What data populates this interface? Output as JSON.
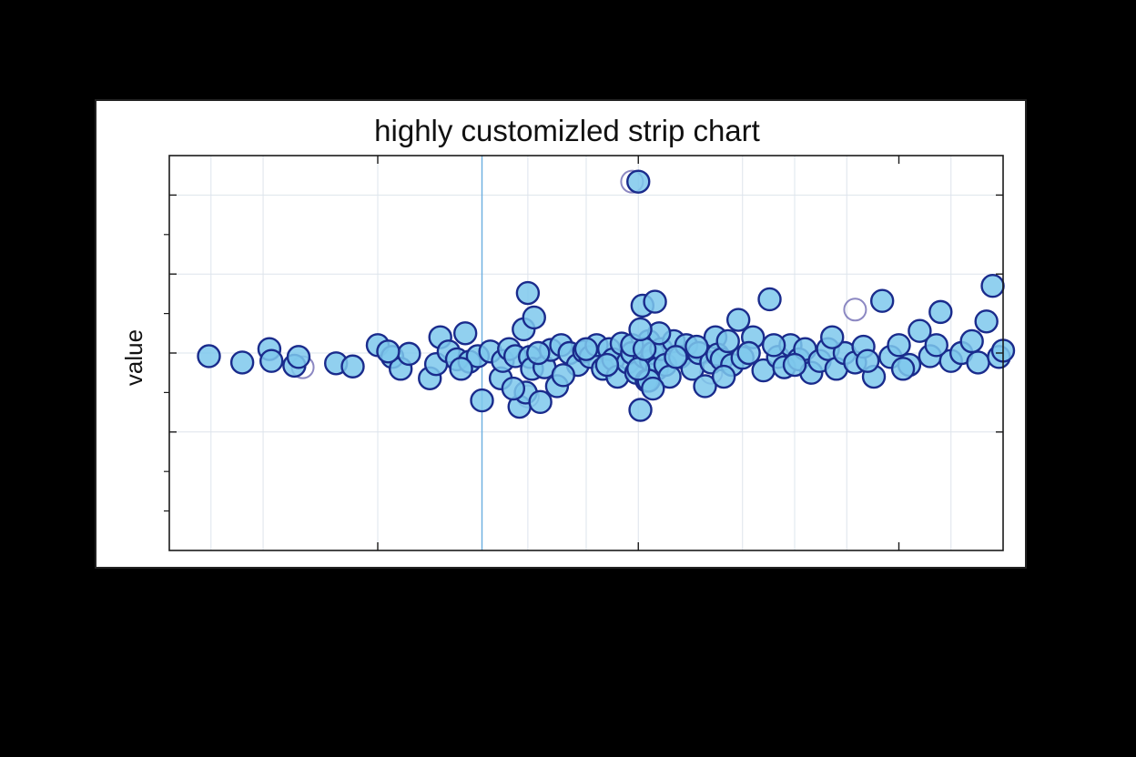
{
  "chart_data": {
    "type": "scatter",
    "title": "highly customizled strip chart",
    "xlabel": "",
    "ylabel": "value",
    "xlim": [
      -1.5,
      2.5
    ],
    "ylim": [
      -2.5,
      2.5
    ],
    "grid": true,
    "tick_labels_shown": false,
    "reference_line_x": 0,
    "colors": {
      "marker_fill": "#7ec8ec",
      "marker_edge": "#1a2b8c",
      "grid": "#dde4ec",
      "reference_line": "#6aaee0"
    },
    "points": [
      {
        "x": -1.31,
        "y": -0.04
      },
      {
        "x": -1.15,
        "y": -0.12
      },
      {
        "x": -1.02,
        "y": 0.05
      },
      {
        "x": -1.01,
        "y": -0.1
      },
      {
        "x": -0.9,
        "y": -0.16
      },
      {
        "x": -0.88,
        "y": -0.05
      },
      {
        "x": -0.7,
        "y": -0.13
      },
      {
        "x": -0.62,
        "y": -0.17
      },
      {
        "x": -0.5,
        "y": 0.1
      },
      {
        "x": -0.43,
        "y": -0.05
      },
      {
        "x": -0.39,
        "y": -0.2
      },
      {
        "x": -0.35,
        "y": -0.01
      },
      {
        "x": -0.25,
        "y": -0.32
      },
      {
        "x": -0.22,
        "y": -0.14
      },
      {
        "x": -0.2,
        "y": 0.2
      },
      {
        "x": -0.16,
        "y": 0.02
      },
      {
        "x": -0.12,
        "y": -0.08
      },
      {
        "x": -0.08,
        "y": 0.25
      },
      {
        "x": -0.06,
        "y": -0.11
      },
      {
        "x": -0.02,
        "y": -0.04
      },
      {
        "x": 0.04,
        "y": 0.02
      },
      {
        "x": 0.09,
        "y": -0.32
      },
      {
        "x": 0.1,
        "y": -0.1
      },
      {
        "x": 0.13,
        "y": 0.05
      },
      {
        "x": 0.16,
        "y": -0.04
      },
      {
        "x": 0.18,
        "y": -0.68
      },
      {
        "x": 0.2,
        "y": 0.3
      },
      {
        "x": 0.21,
        "y": -0.5
      },
      {
        "x": 0.22,
        "y": 0.76
      },
      {
        "x": 0.23,
        "y": -0.05
      },
      {
        "x": 0.24,
        "y": -0.2
      },
      {
        "x": 0.25,
        "y": 0.45
      },
      {
        "x": 0.28,
        "y": -0.62
      },
      {
        "x": 0.3,
        "y": -0.18
      },
      {
        "x": 0.33,
        "y": 0.04
      },
      {
        "x": 0.36,
        "y": -0.42
      },
      {
        "x": 0.38,
        "y": 0.1
      },
      {
        "x": 0.42,
        "y": 0.0
      },
      {
        "x": 0.46,
        "y": -0.15
      },
      {
        "x": 0.49,
        "y": 0.02
      },
      {
        "x": 0.52,
        "y": -0.05
      },
      {
        "x": 0.55,
        "y": 0.1
      },
      {
        "x": 0.58,
        "y": -0.2
      },
      {
        "x": 0.61,
        "y": 0.05
      },
      {
        "x": 0.63,
        "y": -0.08
      },
      {
        "x": 0.65,
        "y": -0.3
      },
      {
        "x": 0.67,
        "y": 0.12
      },
      {
        "x": 0.7,
        "y": -0.12
      },
      {
        "x": 0.72,
        "y": 0.0
      },
      {
        "x": 0.74,
        "y": -0.25
      },
      {
        "x": 0.75,
        "y": 2.17
      },
      {
        "x": 0.76,
        "y": -0.72
      },
      {
        "x": 0.77,
        "y": 0.6
      },
      {
        "x": 0.78,
        "y": -0.05
      },
      {
        "x": 0.79,
        "y": -0.35
      },
      {
        "x": 0.8,
        "y": 0.15
      },
      {
        "x": 0.81,
        "y": -0.1
      },
      {
        "x": 0.82,
        "y": 0.0
      },
      {
        "x": 0.83,
        "y": 0.65
      },
      {
        "x": 0.84,
        "y": -0.2
      },
      {
        "x": 0.86,
        "y": 0.05
      },
      {
        "x": 0.88,
        "y": -0.15
      },
      {
        "x": 0.9,
        "y": -0.3
      },
      {
        "x": 0.92,
        "y": 0.15
      },
      {
        "x": 0.95,
        "y": -0.05
      },
      {
        "x": 0.98,
        "y": 0.1
      },
      {
        "x": 1.01,
        "y": -0.2
      },
      {
        "x": 1.04,
        "y": 0.0
      },
      {
        "x": 1.07,
        "y": -0.42
      },
      {
        "x": 1.1,
        "y": -0.12
      },
      {
        "x": 1.12,
        "y": 0.2
      },
      {
        "x": 1.13,
        "y": -0.02
      },
      {
        "x": 1.15,
        "y": -0.08
      },
      {
        "x": 1.18,
        "y": 0.15
      },
      {
        "x": 1.2,
        "y": -0.15
      },
      {
        "x": 1.23,
        "y": 0.42
      },
      {
        "x": 1.25,
        "y": -0.06
      },
      {
        "x": 1.3,
        "y": 0.2
      },
      {
        "x": 1.35,
        "y": -0.22
      },
      {
        "x": 1.38,
        "y": 0.68
      },
      {
        "x": 1.42,
        "y": -0.05
      },
      {
        "x": 1.45,
        "y": -0.18
      },
      {
        "x": 1.48,
        "y": 0.1
      },
      {
        "x": 1.52,
        "y": -0.08
      },
      {
        "x": 1.55,
        "y": 0.05
      },
      {
        "x": 1.58,
        "y": -0.25
      },
      {
        "x": 1.62,
        "y": -0.1
      },
      {
        "x": 1.66,
        "y": 0.05
      },
      {
        "x": 1.7,
        "y": -0.2
      },
      {
        "x": 1.74,
        "y": 0.0
      },
      {
        "x": 1.79,
        "y": -0.12
      },
      {
        "x": 1.83,
        "y": 0.08
      },
      {
        "x": 1.88,
        "y": -0.3
      },
      {
        "x": 1.92,
        "y": 0.66
      },
      {
        "x": 1.96,
        "y": -0.05
      },
      {
        "x": 2.0,
        "y": 0.1
      },
      {
        "x": 2.05,
        "y": -0.15
      },
      {
        "x": 2.1,
        "y": 0.28
      },
      {
        "x": 2.15,
        "y": -0.04
      },
      {
        "x": 2.2,
        "y": 0.52
      },
      {
        "x": 2.25,
        "y": -0.1
      },
      {
        "x": 2.3,
        "y": 0.0
      },
      {
        "x": 2.35,
        "y": 0.15
      },
      {
        "x": 2.38,
        "y": -0.12
      },
      {
        "x": 2.42,
        "y": 0.4
      },
      {
        "x": 2.45,
        "y": 0.85
      },
      {
        "x": 2.48,
        "y": -0.05
      },
      {
        "x": 2.5,
        "y": 0.03
      }
    ],
    "extra_points": [
      {
        "x": -0.45,
        "y": 0.02
      },
      {
        "x": -0.1,
        "y": -0.2
      },
      {
        "x": 0.15,
        "y": -0.45
      },
      {
        "x": 0.27,
        "y": 0.0
      },
      {
        "x": 0.39,
        "y": -0.28
      },
      {
        "x": 0.5,
        "y": 0.05
      },
      {
        "x": 0.6,
        "y": -0.15
      },
      {
        "x": 0.72,
        "y": 0.1
      },
      {
        "x": 0.8,
        "y": -0.35
      },
      {
        "x": 0.85,
        "y": 0.25
      },
      {
        "x": 0.93,
        "y": -0.05
      },
      {
        "x": 1.03,
        "y": 0.08
      },
      {
        "x": 1.16,
        "y": -0.3
      },
      {
        "x": 1.28,
        "y": 0.0
      },
      {
        "x": 1.4,
        "y": 0.1
      },
      {
        "x": 1.5,
        "y": -0.15
      },
      {
        "x": 1.68,
        "y": 0.2
      },
      {
        "x": 1.85,
        "y": -0.1
      },
      {
        "x": 2.02,
        "y": -0.2
      },
      {
        "x": 2.18,
        "y": 0.1
      },
      {
        "x": 0.0,
        "y": -0.6
      },
      {
        "x": 0.75,
        "y": -0.2
      },
      {
        "x": 0.78,
        "y": 0.05
      },
      {
        "x": 0.82,
        "y": -0.45
      },
      {
        "x": 0.76,
        "y": 0.3
      }
    ],
    "faded_points": [
      {
        "x": -0.86,
        "y": -0.18
      },
      {
        "x": 0.72,
        "y": 2.17
      },
      {
        "x": 1.79,
        "y": 0.55
      },
      {
        "x": 0.22,
        "y": -0.55
      },
      {
        "x": 1.1,
        "y": -0.25
      }
    ]
  }
}
